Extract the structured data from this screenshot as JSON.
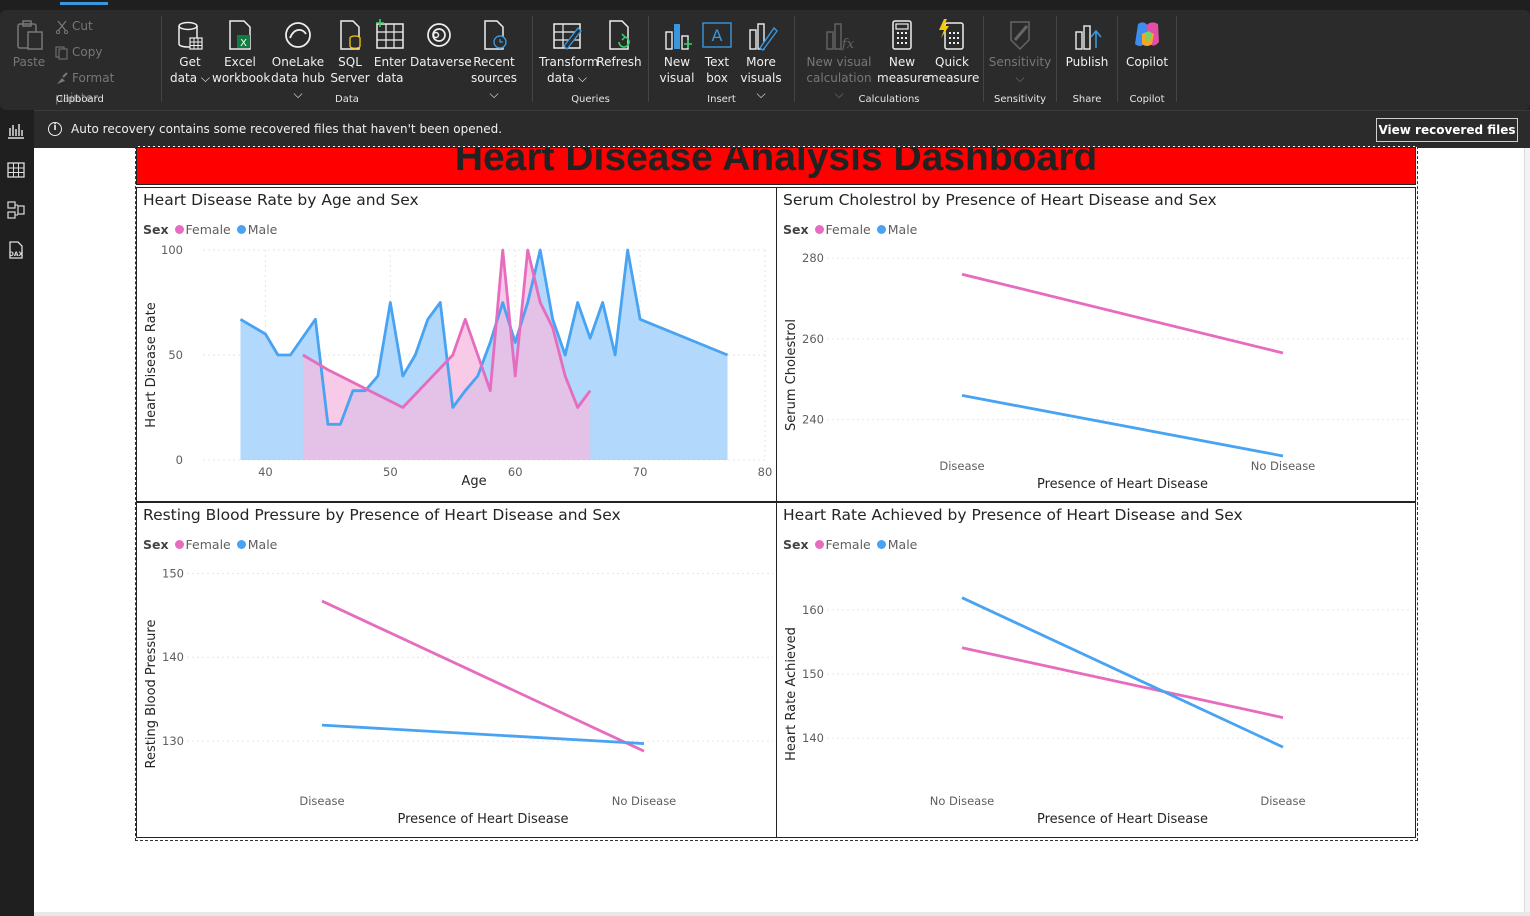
{
  "ribbon": {
    "clipboard": {
      "label": "Clipboard",
      "paste": "Paste",
      "cut": "Cut",
      "copy": "Copy",
      "format_painter": "Format painter"
    },
    "data": {
      "label": "Data",
      "buttons": [
        {
          "l1": "Get",
          "l2": "data ⌵"
        },
        {
          "l1": "Excel",
          "l2": "workbook"
        },
        {
          "l1": "OneLake",
          "l2": "data hub ⌵"
        },
        {
          "l1": "SQL",
          "l2": "Server"
        },
        {
          "l1": "Enter",
          "l2": "data"
        },
        {
          "l1": "Dataverse",
          "l2": ""
        },
        {
          "l1": "Recent",
          "l2": "sources ⌵"
        }
      ]
    },
    "queries": {
      "label": "Queries",
      "buttons": [
        {
          "l1": "Transform",
          "l2": "data ⌵"
        },
        {
          "l1": "Refresh",
          "l2": ""
        }
      ]
    },
    "insert": {
      "label": "Insert",
      "buttons": [
        {
          "l1": "New",
          "l2": "visual"
        },
        {
          "l1": "Text",
          "l2": "box"
        },
        {
          "l1": "More",
          "l2": "visuals ⌵"
        }
      ]
    },
    "calculations": {
      "label": "Calculations",
      "buttons": [
        {
          "l1": "New visual",
          "l2": "calculation ⌵"
        },
        {
          "l1": "New",
          "l2": "measure"
        },
        {
          "l1": "Quick",
          "l2": "measure"
        }
      ]
    },
    "sensitivity": {
      "label": "Sensitivity",
      "button": "Sensitivity",
      "button_l2": "⌵"
    },
    "share": {
      "label": "Share",
      "button": "Publish"
    },
    "copilot": {
      "label": "Copilot",
      "button": "Copilot"
    }
  },
  "notice": {
    "text": "Auto recovery contains some recovered files that haven't been opened.",
    "button": "View recovered files"
  },
  "report": {
    "title": "Heart Disease Analysis Dashboard",
    "legend_title": "Sex",
    "legend_female": "Female",
    "legend_male": "Male",
    "colors": {
      "female": "#e66cbf",
      "male": "#48a3f3",
      "female_fill": "#f4b9df",
      "male_fill": "#aed6fb",
      "overlap_fill": "#ada9e8"
    }
  },
  "chart_data": [
    {
      "type": "area",
      "title": "Heart Disease Rate by Age and Sex",
      "xlabel": "Age",
      "ylabel": "Heart Disease Rate",
      "xlim": [
        35,
        80
      ],
      "ylim": [
        0,
        100
      ],
      "xticks": [
        "40",
        "50",
        "60",
        "70",
        "80"
      ],
      "yticks": [
        "0",
        "50",
        "100"
      ],
      "series": [
        {
          "name": "Male",
          "x": [
            38,
            40,
            41,
            42,
            44,
            45,
            46,
            47,
            48,
            49,
            50,
            51,
            52,
            53,
            54,
            55,
            56,
            57,
            58,
            59,
            60,
            61,
            62,
            63,
            64,
            65,
            66,
            67,
            68,
            69,
            70,
            77
          ],
          "y": [
            67,
            60,
            50,
            50,
            67,
            17,
            17,
            33,
            33,
            40,
            75,
            40,
            50,
            67,
            75,
            25,
            33,
            40,
            56,
            75,
            56,
            75,
            100,
            67,
            50,
            75,
            58,
            75,
            50,
            100,
            67,
            50
          ]
        },
        {
          "name": "Female",
          "x": [
            43,
            45,
            51,
            55,
            56,
            58,
            59,
            60,
            61,
            62,
            63,
            64,
            65,
            66
          ],
          "y": [
            50,
            43,
            25,
            50,
            67,
            33,
            100,
            40,
            100,
            75,
            63,
            40,
            25,
            33
          ]
        }
      ]
    },
    {
      "type": "line",
      "title": "Serum Cholestrol by Presence of Heart Disease and Sex",
      "xlabel": "Presence of Heart Disease",
      "ylabel": "Serum Cholestrol",
      "categories": [
        "Disease",
        "No Disease"
      ],
      "ylim": [
        230,
        282
      ],
      "yticks": [
        "240",
        "260",
        "280"
      ],
      "series": [
        {
          "name": "Female",
          "values": [
            276,
            256.5
          ]
        },
        {
          "name": "Male",
          "values": [
            246,
            231
          ]
        }
      ]
    },
    {
      "type": "line",
      "title": "Resting Blood Pressure by Presence of Heart Disease and Sex",
      "xlabel": "Presence of Heart Disease",
      "ylabel": "Resting Blood Pressure",
      "categories": [
        "Disease",
        "No Disease"
      ],
      "ylim": [
        125,
        151
      ],
      "yticks": [
        "130",
        "140",
        "150"
      ],
      "series": [
        {
          "name": "Female",
          "values": [
            146.7,
            128.8
          ]
        },
        {
          "name": "Male",
          "values": [
            131.9,
            129.7
          ]
        }
      ]
    },
    {
      "type": "line",
      "title": "Heart Rate Achieved by Presence of Heart Disease and Sex",
      "xlabel": "Presence of Heart Disease",
      "ylabel": "Heart Rate Achieved",
      "categories": [
        "No Disease",
        "Disease"
      ],
      "ylim": [
        133,
        167
      ],
      "yticks": [
        "140",
        "150",
        "160"
      ],
      "series": [
        {
          "name": "Female",
          "values": [
            154.1,
            143.2
          ]
        },
        {
          "name": "Male",
          "values": [
            161.9,
            138.6
          ]
        }
      ]
    }
  ]
}
